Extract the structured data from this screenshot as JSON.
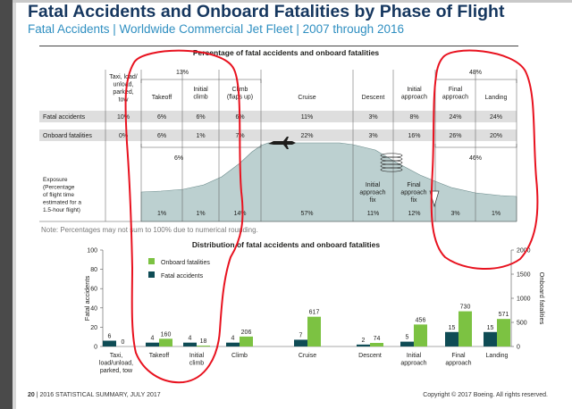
{
  "title": "Fatal Accidents and Onboard Fatalities by Phase of Flight",
  "subtitle": "Fatal Accidents | Worldwide Commercial Jet Fleet | 2007 through 2016",
  "table": {
    "title": "Percentage of fatal accidents and onboard fatalities",
    "phases": [
      [
        "Taxi, load/",
        "unload,",
        "parked,",
        "tow"
      ],
      [
        "Takeoff"
      ],
      [
        "Initial",
        "climb"
      ],
      [
        "Climb",
        "(flaps up)"
      ],
      [
        "Cruise"
      ],
      [
        "Descent"
      ],
      [
        "Initial",
        "approach"
      ],
      [
        "Final",
        "approach"
      ],
      [
        "Landing"
      ]
    ],
    "group_top_left": "13%",
    "group_top_right": "48%",
    "group_bottom_left": "6%",
    "group_bottom_right": "46%",
    "rows": [
      {
        "label": "Fatal accidents",
        "values": [
          "10%",
          "6%",
          "6%",
          "6%",
          "11%",
          "3%",
          "8%",
          "24%",
          "24%"
        ]
      },
      {
        "label": "Onboard fatalities",
        "values": [
          "0%",
          "6%",
          "1%",
          "7%",
          "22%",
          "3%",
          "16%",
          "26%",
          "20%"
        ]
      }
    ],
    "exposure_label": [
      "Exposure",
      "(Percentage",
      "of flight time",
      "estimated for a",
      "1.5-hour flight)"
    ],
    "exposure_values": [
      "1%",
      "1%",
      "14%",
      "57%",
      "11%",
      "12%",
      "3%",
      "1%"
    ],
    "fix_labels": [
      [
        "Initial",
        "approach",
        "fix"
      ],
      [
        "Final",
        "approach",
        "fix"
      ]
    ],
    "note": "Note: Percentages may not sum to 100% due to numerical rounding."
  },
  "chart_data": {
    "type": "bar",
    "title": "Distribution of fatal accidents and onboard fatalities",
    "categories": [
      "Taxi, load/unload, parked, tow",
      "Takeoff",
      "Initial climb",
      "Climb",
      "Cruise",
      "Descent",
      "Initial approach",
      "Final approach",
      "Landing"
    ],
    "category_lines": [
      [
        "Taxi,",
        "load/unload,",
        "parked, tow"
      ],
      [
        "Takeoff"
      ],
      [
        "Initial",
        "climb"
      ],
      [
        "Climb"
      ],
      [
        "Cruise"
      ],
      [
        "Descent"
      ],
      [
        "Initial",
        "approach"
      ],
      [
        "Final",
        "approach"
      ],
      [
        "Landing"
      ]
    ],
    "series": [
      {
        "name": "Fatal accidents",
        "axis": "left",
        "color": "#0f4c55",
        "values": [
          6,
          4,
          4,
          4,
          7,
          2,
          5,
          15,
          15
        ]
      },
      {
        "name": "Onboard fatalities",
        "axis": "right",
        "color": "#7cc242",
        "values": [
          0,
          160,
          18,
          206,
          617,
          74,
          456,
          730,
          571
        ]
      }
    ],
    "ylabel_left": "Fatal accidents",
    "ylabel_right": "Onboard fatalities",
    "ylim_left": [
      0,
      100
    ],
    "ylim_right": [
      0,
      2000
    ],
    "yticks_left": [
      0,
      20,
      40,
      60,
      80,
      100
    ],
    "yticks_right": [
      0,
      500,
      1000,
      1500,
      2000
    ],
    "legend_placement": "top-left"
  },
  "footer": {
    "page": "20",
    "left": "| 2016 STATISTICAL SUMMARY, JULY 2017",
    "right": "Copyright © 2017 Boeing. All rights reserved."
  },
  "colors": {
    "title": "#16375f",
    "subtitle": "#2f8fc1",
    "profile": "#bcd0d0",
    "row_band": "#dedede",
    "annotation": "#e8121f"
  }
}
